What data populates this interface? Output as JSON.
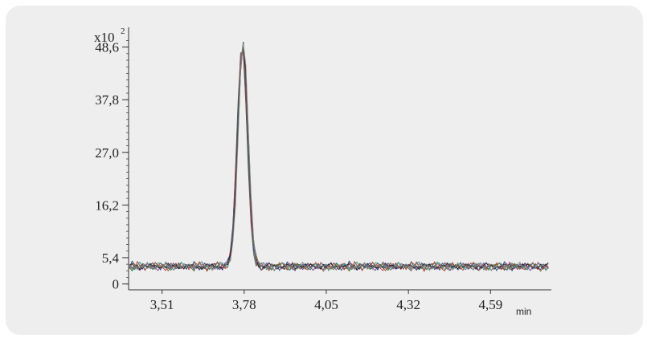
{
  "chart_data": {
    "type": "line",
    "title": "",
    "xlabel": "min",
    "ylabel": "",
    "y_multiplier_label": "x10",
    "y_multiplier_exponent": "2",
    "xlim": [
      3.4,
      4.79
    ],
    "ylim": [
      -1.2,
      52.0
    ],
    "x_ticks": [
      "3,51",
      "3,78",
      "4,05",
      "4,32",
      "4,59"
    ],
    "x_tick_values": [
      3.51,
      3.78,
      4.05,
      4.32,
      4.59
    ],
    "y_ticks": [
      "0",
      "5,4",
      "16,2",
      "27,0",
      "37,8",
      "48,6"
    ],
    "y_tick_values": [
      0,
      5.4,
      16.2,
      27.0,
      37.8,
      48.6
    ],
    "grid": false,
    "legend": "none",
    "peak": {
      "x": 3.775,
      "y": 49.5
    },
    "baseline": 3.8,
    "series": [
      {
        "color": "#3a7d2c",
        "values": [
          3.4,
          2.6,
          4.1,
          3.2,
          2.8,
          3.9,
          3.6,
          2.9,
          4.3,
          3.1,
          3.7,
          4.0
        ]
      },
      {
        "color": "#c0392b",
        "values": [
          4.2,
          3.1,
          2.7,
          4.5,
          3.3,
          3.8,
          2.6,
          4.1,
          3.4,
          2.9,
          4.4,
          3.0
        ]
      },
      {
        "color": "#2c3e8f",
        "values": [
          2.9,
          4.6,
          3.5,
          2.8,
          4.0,
          3.2,
          4.2,
          3.0,
          3.6,
          4.1,
          2.8,
          3.9
        ]
      },
      {
        "color": "#7d3c98",
        "values": [
          3.7,
          3.0,
          4.3,
          3.6,
          2.7,
          4.1,
          3.3,
          3.8,
          2.9,
          4.0,
          3.5,
          2.8
        ]
      },
      {
        "color": "#1e8c8c",
        "values": [
          4.0,
          3.5,
          2.9,
          3.9,
          4.4,
          2.8,
          3.7,
          3.2,
          4.2,
          3.3,
          3.0,
          4.3
        ]
      },
      {
        "color": "#8a5a2b",
        "values": [
          3.1,
          4.3,
          3.8,
          2.6,
          3.4,
          4.2,
          2.9,
          4.0,
          3.2,
          3.7,
          4.1,
          3.4
        ]
      },
      {
        "color": "#222222",
        "values": [
          3.5,
          3.8,
          3.2,
          4.1,
          3.0,
          3.6,
          4.0,
          3.3,
          3.9,
          3.1,
          3.8,
          3.5
        ]
      },
      {
        "color": "#888888",
        "values": [
          3.8,
          2.8,
          4.4,
          3.0,
          3.9,
          2.9,
          3.5,
          4.3,
          2.7,
          3.8,
          3.2,
          4.1
        ]
      }
    ]
  }
}
